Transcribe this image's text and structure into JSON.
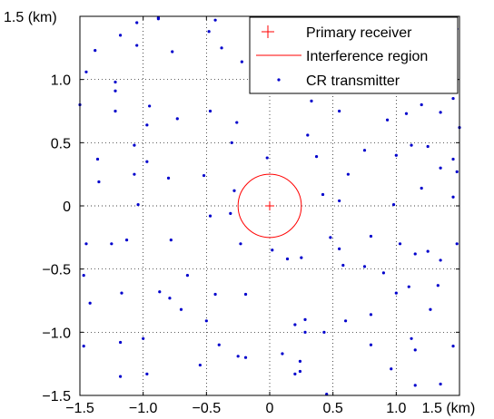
{
  "chart_data": {
    "type": "scatter",
    "title": "",
    "xlabel": "",
    "ylabel": "",
    "xlim": [
      -1.5,
      1.5
    ],
    "ylim": [
      -1.5,
      1.5
    ],
    "grid": true,
    "grid_style": "dotted",
    "legend_position": "top-right",
    "x_ticks": [
      -1.5,
      -1.0,
      -0.5,
      0,
      0.5,
      1.0,
      1.5
    ],
    "y_ticks": [
      -1.5,
      -1.0,
      -0.5,
      0,
      0.5,
      1.0,
      1.5
    ],
    "x_tick_labels": [
      "−1.5",
      "−1.0",
      "−0.5",
      "0",
      "0.5",
      "1.0",
      "1.5 (km)"
    ],
    "y_tick_labels": [
      "−1.5",
      "−1.0",
      "−0.5",
      "0",
      "0.5",
      "1.0",
      "1.5 (km)"
    ],
    "series": [
      {
        "name": "Primary receiver",
        "type": "marker",
        "marker": "+",
        "color": "#ff0000",
        "points": [
          [
            0,
            0
          ]
        ]
      },
      {
        "name": "Interference region",
        "type": "circle",
        "color": "#ff0000",
        "center": [
          0,
          0
        ],
        "radius": 0.25
      },
      {
        "name": "CR transmitter",
        "type": "scatter",
        "marker": "dot",
        "color": "#0000cc",
        "points": [
          [
            -1.05,
            1.45
          ],
          [
            -0.88,
            1.49
          ],
          [
            -1.18,
            1.35
          ],
          [
            -1.05,
            1.27
          ],
          [
            -1.38,
            1.23
          ],
          [
            -1.45,
            1.06
          ],
          [
            -0.48,
            1.38
          ],
          [
            -0.38,
            1.25
          ],
          [
            -0.12,
            1.34
          ],
          [
            0.09,
            1.4
          ],
          [
            -0.77,
            1.22
          ],
          [
            -0.22,
            1.14
          ],
          [
            -1.22,
            0.91
          ],
          [
            -1.5,
            0.8
          ],
          [
            -1.22,
            0.75
          ],
          [
            -0.95,
            0.79
          ],
          [
            -0.73,
            0.69
          ],
          [
            -0.47,
            0.75
          ],
          [
            -0.97,
            0.64
          ],
          [
            -0.26,
            0.66
          ],
          [
            -1.07,
            0.48
          ],
          [
            -1.36,
            0.37
          ],
          [
            -0.97,
            0.35
          ],
          [
            -0.52,
            0.24
          ],
          [
            -0.8,
            0.22
          ],
          [
            -1.35,
            0.19
          ],
          [
            -1.07,
            0.25
          ],
          [
            -0.28,
            0.12
          ],
          [
            -0.02,
            0.38
          ],
          [
            -1.04,
            0.01
          ],
          [
            -0.3,
            0.5
          ],
          [
            -0.78,
            -0.27
          ],
          [
            -1.45,
            -0.3
          ],
          [
            -1.25,
            -0.3
          ],
          [
            -1.13,
            -0.27
          ],
          [
            -0.23,
            -0.3
          ],
          [
            -0.47,
            -0.08
          ],
          [
            -0.31,
            -0.06
          ],
          [
            0.25,
            -0.41
          ],
          [
            0.14,
            -0.42
          ],
          [
            0.02,
            -0.35
          ],
          [
            -0.65,
            -0.55
          ],
          [
            -1.47,
            -0.55
          ],
          [
            -1.42,
            -0.77
          ],
          [
            -1.17,
            -0.69
          ],
          [
            -0.87,
            -0.68
          ],
          [
            -0.79,
            -0.73
          ],
          [
            -0.43,
            -0.7
          ],
          [
            -0.19,
            -0.7
          ],
          [
            -0.7,
            -0.82
          ],
          [
            -0.5,
            -0.91
          ],
          [
            -1.47,
            -1.11
          ],
          [
            -1.18,
            -1.08
          ],
          [
            -1.0,
            -1.05
          ],
          [
            -0.4,
            -1.1
          ],
          [
            0.2,
            -0.94
          ],
          [
            0.28,
            -1.0
          ],
          [
            -0.25,
            -1.19
          ],
          [
            -0.55,
            -1.26
          ],
          [
            -1.18,
            -1.35
          ],
          [
            -0.97,
            -1.33
          ],
          [
            -0.19,
            -1.2
          ],
          [
            0.24,
            -1.23
          ],
          [
            0.24,
            -1.31
          ],
          [
            0.45,
            -1.49
          ],
          [
            0.6,
            -0.91
          ],
          [
            0.1,
            -1.17
          ],
          [
            0.37,
            0.39
          ],
          [
            0.42,
            0.09
          ],
          [
            0.48,
            -0.25
          ],
          [
            0.62,
            0.25
          ],
          [
            0.55,
            0.04
          ],
          [
            0.55,
            -0.34
          ],
          [
            0.58,
            -0.47
          ],
          [
            0.75,
            0.44
          ],
          [
            0.8,
            -0.24
          ],
          [
            0.75,
            -0.48
          ],
          [
            0.8,
            -0.86
          ],
          [
            1.0,
            0.4
          ],
          [
            0.98,
            0.01
          ],
          [
            1.03,
            -0.3
          ],
          [
            1.0,
            -0.69
          ],
          [
            1.1,
            -0.64
          ],
          [
            1.15,
            -0.38
          ],
          [
            1.25,
            -0.36
          ],
          [
            1.35,
            -0.43
          ],
          [
            1.48,
            -0.3
          ],
          [
            1.2,
            0.14
          ],
          [
            1.35,
            0.3
          ],
          [
            1.48,
            0.27
          ],
          [
            1.25,
            0.47
          ],
          [
            1.12,
            0.48
          ],
          [
            1.45,
            0.37
          ],
          [
            1.45,
            0.07
          ],
          [
            1.33,
            -0.63
          ],
          [
            1.27,
            -0.82
          ],
          [
            1.12,
            -1.05
          ],
          [
            1.15,
            -1.14
          ],
          [
            0.8,
            -1.1
          ],
          [
            0.96,
            -1.29
          ],
          [
            1.35,
            -1.41
          ],
          [
            1.45,
            -1.11
          ],
          [
            1.15,
            -1.42
          ],
          [
            0.43,
            -1.0
          ],
          [
            0.2,
            -1.33
          ],
          [
            0.28,
            -0.9
          ],
          [
            0.9,
            -0.53
          ],
          [
            0.3,
            0.56
          ],
          [
            0.33,
            0.83
          ],
          [
            0.55,
            0.75
          ],
          [
            0.93,
            0.68
          ],
          [
            1.08,
            0.73
          ],
          [
            1.2,
            0.8
          ],
          [
            1.35,
            0.74
          ],
          [
            1.45,
            0.96
          ],
          [
            1.3,
            1.13
          ],
          [
            0.38,
            1.22
          ],
          [
            0.6,
            1.16
          ],
          [
            0.77,
            1.13
          ],
          [
            0.95,
            1.22
          ],
          [
            0.45,
            1.35
          ],
          [
            0.85,
            1.4
          ],
          [
            1.08,
            1.44
          ],
          [
            1.35,
            1.47
          ],
          [
            1.48,
            1.4
          ],
          [
            0.15,
            1.47
          ],
          [
            0.55,
            1.05
          ],
          [
            0.8,
            0.95
          ],
          [
            1.45,
            0.85
          ],
          [
            0.68,
            0.95
          ],
          [
            1.3,
            1.25
          ],
          [
            1.5,
            0.62
          ],
          [
            0.5,
            1.45
          ],
          [
            -0.88,
            1.48
          ],
          [
            -0.1,
            1.2
          ],
          [
            -0.43,
            1.47
          ],
          [
            -1.22,
            0.98
          ]
        ]
      }
    ]
  }
}
